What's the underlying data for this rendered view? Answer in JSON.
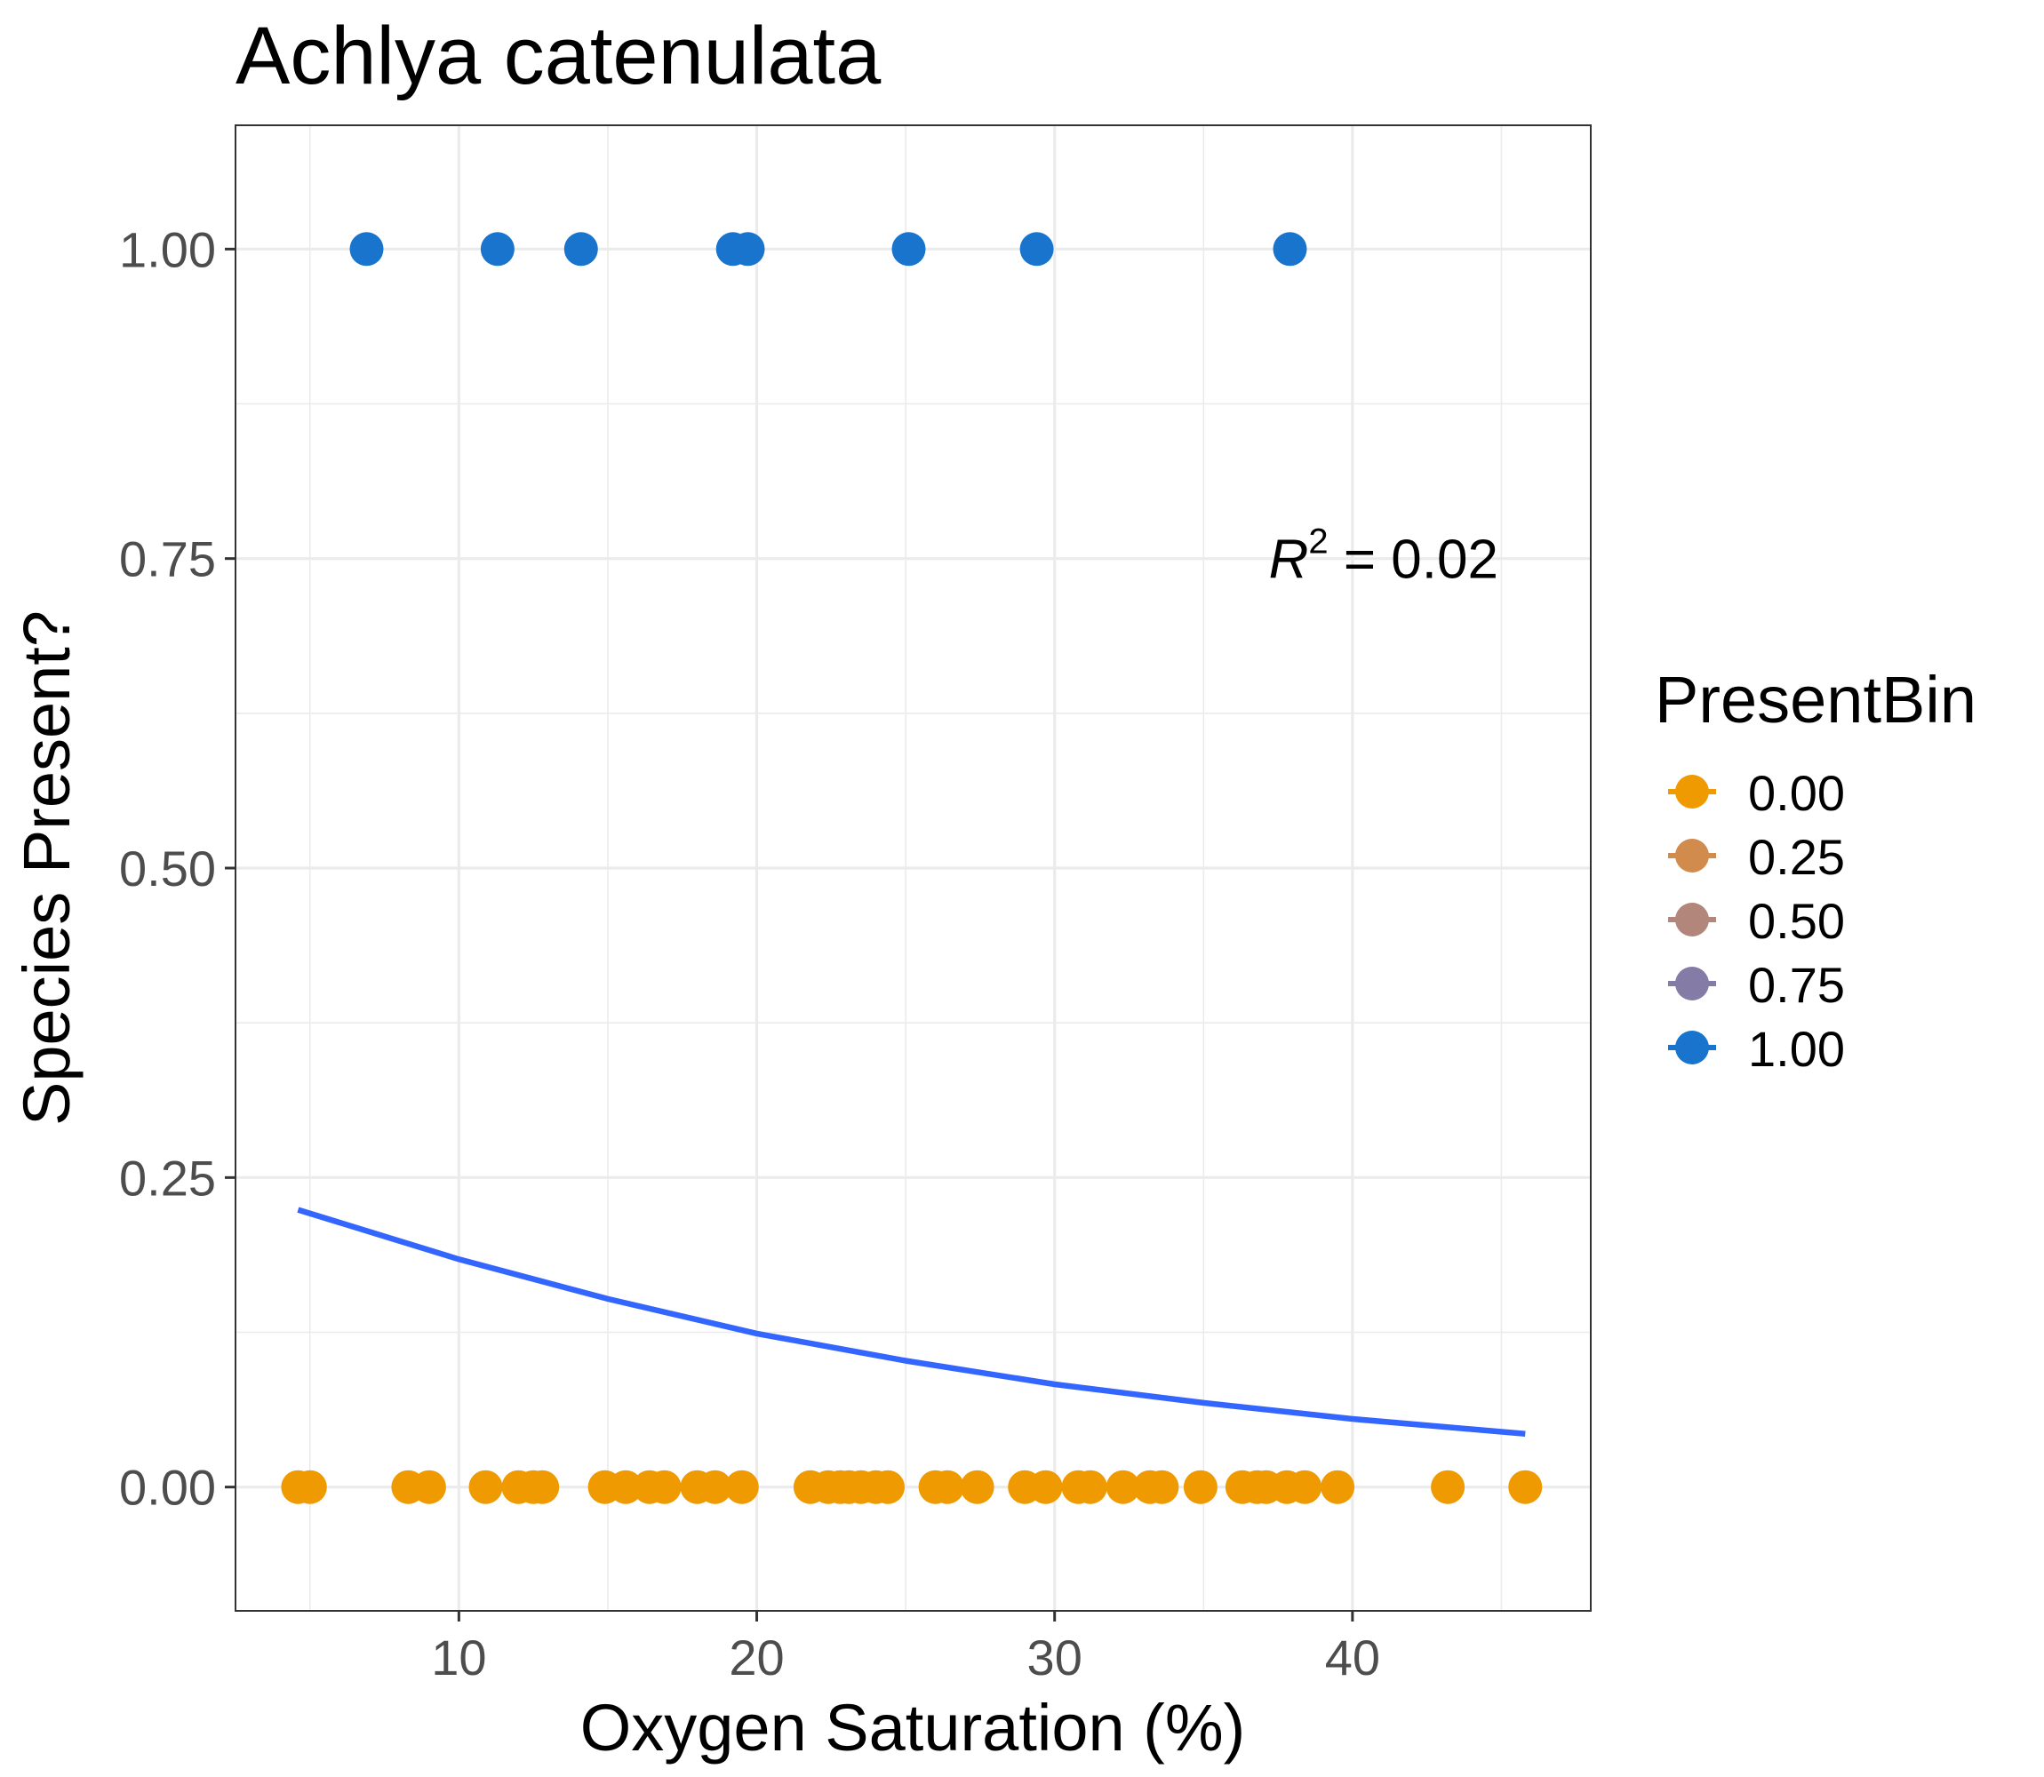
{
  "chart_data": {
    "type": "scatter",
    "title": "Achlya catenulata",
    "xlabel": "Oxygen Saturation (%)",
    "ylabel": "Species Present?",
    "xlim": [
      2.5,
      48
    ],
    "ylim": [
      -0.1,
      1.1
    ],
    "x_ticks": [
      10,
      20,
      30,
      40
    ],
    "y_ticks": [
      0,
      0.25,
      0.5,
      0.75,
      1.0
    ],
    "x_tick_labels": [
      "10",
      "20",
      "30",
      "40"
    ],
    "y_tick_labels": [
      "0.00",
      "0.25",
      "0.50",
      "0.75",
      "1.00"
    ],
    "grid": true,
    "legend": {
      "title": "PresentBin",
      "placement": "right",
      "entries": [
        {
          "label": "0.00",
          "color": "#EE9A00"
        },
        {
          "label": "0.25",
          "color": "#D18B4D"
        },
        {
          "label": "0.50",
          "color": "#B3867B"
        },
        {
          "label": "0.75",
          "color": "#847CA6"
        },
        {
          "label": "1.00",
          "color": "#1874CD"
        }
      ]
    },
    "annotation": {
      "prefix": "R",
      "superscript": "2",
      "text": " = 0.02",
      "x": 44,
      "y": 0.75
    },
    "series": [
      {
        "present_bin": 0.0,
        "color": "#EE9A00",
        "points": [
          [
            4.6,
            0
          ],
          [
            5.0,
            0
          ],
          [
            8.3,
            0
          ],
          [
            9.0,
            0
          ],
          [
            10.9,
            0
          ],
          [
            12.0,
            0
          ],
          [
            12.5,
            0
          ],
          [
            12.8,
            0
          ],
          [
            14.9,
            0
          ],
          [
            15.6,
            0
          ],
          [
            16.4,
            0
          ],
          [
            16.9,
            0
          ],
          [
            18.0,
            0
          ],
          [
            18.6,
            0
          ],
          [
            19.5,
            0
          ],
          [
            21.8,
            0
          ],
          [
            22.4,
            0
          ],
          [
            22.8,
            0
          ],
          [
            23.1,
            0
          ],
          [
            23.5,
            0
          ],
          [
            24.0,
            0
          ],
          [
            24.4,
            0
          ],
          [
            26.0,
            0
          ],
          [
            26.4,
            0
          ],
          [
            27.4,
            0
          ],
          [
            29.0,
            0
          ],
          [
            29.7,
            0
          ],
          [
            30.8,
            0
          ],
          [
            31.2,
            0
          ],
          [
            32.3,
            0
          ],
          [
            33.2,
            0
          ],
          [
            33.6,
            0
          ],
          [
            34.9,
            0
          ],
          [
            36.3,
            0
          ],
          [
            36.8,
            0
          ],
          [
            37.1,
            0
          ],
          [
            37.8,
            0
          ],
          [
            38.4,
            0
          ],
          [
            39.5,
            0
          ],
          [
            43.2,
            0
          ],
          [
            45.8,
            0
          ]
        ]
      },
      {
        "present_bin": 1.0,
        "color": "#1874CD",
        "points": [
          [
            6.9,
            1
          ],
          [
            11.3,
            1
          ],
          [
            14.1,
            1
          ],
          [
            19.2,
            1
          ],
          [
            19.7,
            1
          ],
          [
            25.1,
            1
          ],
          [
            29.4,
            1
          ],
          [
            37.9,
            1
          ]
        ]
      }
    ],
    "fit_line": {
      "type": "logistic",
      "color": "#3366FF",
      "points": [
        [
          4.6,
          0.224
        ],
        [
          10,
          0.184
        ],
        [
          15,
          0.152
        ],
        [
          20,
          0.124
        ],
        [
          25,
          0.102
        ],
        [
          30,
          0.083
        ],
        [
          35,
          0.068
        ],
        [
          40,
          0.055
        ],
        [
          45.8,
          0.043
        ]
      ]
    }
  }
}
